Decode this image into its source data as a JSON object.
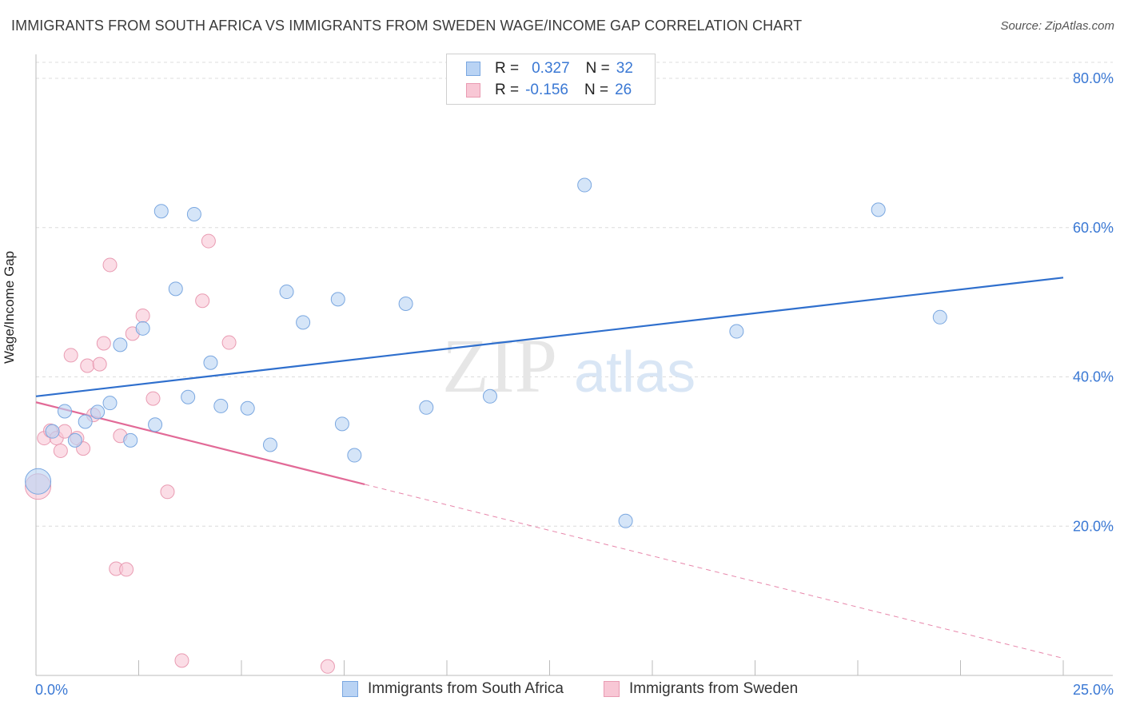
{
  "title": "IMMIGRANTS FROM SOUTH AFRICA VS IMMIGRANTS FROM SWEDEN WAGE/INCOME GAP CORRELATION CHART",
  "source": "Source: ZipAtlas.com",
  "watermark": {
    "zip": "ZIP",
    "atlas": "atlas"
  },
  "legend": {
    "r_label": "R =",
    "n_label": "N =",
    "south_africa": {
      "r": "0.327",
      "n": "32"
    },
    "sweden": {
      "r": "-0.156",
      "n": "26"
    }
  },
  "colors": {
    "blue_fill": "#b9d3f4",
    "blue_stroke": "#7aa7e0",
    "blue_line": "#2f6fcd",
    "pink_fill": "#f8c7d5",
    "pink_stroke": "#e99bb2",
    "pink_line": "#e26a97",
    "axis_text": "#3a78d4"
  },
  "chart_data": {
    "type": "scatter",
    "title": "IMMIGRANTS FROM SOUTH AFRICA VS IMMIGRANTS FROM SWEDEN WAGE/INCOME GAP CORRELATION CHART",
    "xlabel": "",
    "ylabel": "Wage/Income Gap",
    "xlim": [
      0,
      25
    ],
    "ylim": [
      0,
      83
    ],
    "x_tick_labels": [
      "0.0%",
      "25.0%"
    ],
    "y_ticks": [
      20,
      40,
      60,
      80
    ],
    "y_tick_labels": [
      "20.0%",
      "40.0%",
      "60.0%",
      "80.0%"
    ],
    "grid": true,
    "legend_position": "top-center",
    "series": [
      {
        "name": "Immigrants from South Africa",
        "r": 0.327,
        "n": 32,
        "points": [
          {
            "x": 0.05,
            "y": 26.0,
            "big": true
          },
          {
            "x": 0.4,
            "y": 32.7
          },
          {
            "x": 0.7,
            "y": 35.4
          },
          {
            "x": 0.95,
            "y": 31.5
          },
          {
            "x": 1.2,
            "y": 34.0
          },
          {
            "x": 1.5,
            "y": 35.3
          },
          {
            "x": 1.8,
            "y": 36.5
          },
          {
            "x": 2.05,
            "y": 44.3
          },
          {
            "x": 2.3,
            "y": 31.5
          },
          {
            "x": 2.6,
            "y": 46.5
          },
          {
            "x": 2.9,
            "y": 33.6
          },
          {
            "x": 3.05,
            "y": 62.2
          },
          {
            "x": 3.4,
            "y": 51.8
          },
          {
            "x": 3.7,
            "y": 37.3
          },
          {
            "x": 3.85,
            "y": 61.8
          },
          {
            "x": 4.25,
            "y": 41.9
          },
          {
            "x": 4.5,
            "y": 36.1
          },
          {
            "x": 5.15,
            "y": 35.8
          },
          {
            "x": 5.7,
            "y": 30.9
          },
          {
            "x": 6.1,
            "y": 51.4
          },
          {
            "x": 6.5,
            "y": 47.3
          },
          {
            "x": 7.35,
            "y": 50.4
          },
          {
            "x": 7.45,
            "y": 33.7
          },
          {
            "x": 7.75,
            "y": 29.5
          },
          {
            "x": 9.0,
            "y": 49.8
          },
          {
            "x": 9.5,
            "y": 35.9
          },
          {
            "x": 11.05,
            "y": 37.4
          },
          {
            "x": 13.35,
            "y": 65.7
          },
          {
            "x": 14.35,
            "y": 20.7
          },
          {
            "x": 17.05,
            "y": 46.1
          },
          {
            "x": 20.5,
            "y": 62.4
          },
          {
            "x": 22.0,
            "y": 48.0
          }
        ],
        "trend": {
          "x0": 0,
          "y0": 37.4,
          "x1": 25,
          "y1": 53.3
        }
      },
      {
        "name": "Immigrants from Sweden",
        "r": -0.156,
        "n": 26,
        "points": [
          {
            "x": 0.05,
            "y": 25.3,
            "big": true
          },
          {
            "x": 0.2,
            "y": 31.8
          },
          {
            "x": 0.35,
            "y": 32.8
          },
          {
            "x": 0.5,
            "y": 31.8
          },
          {
            "x": 0.6,
            "y": 30.1
          },
          {
            "x": 0.7,
            "y": 32.7
          },
          {
            "x": 0.85,
            "y": 42.9
          },
          {
            "x": 1.0,
            "y": 31.8
          },
          {
            "x": 1.15,
            "y": 30.4
          },
          {
            "x": 1.25,
            "y": 41.5
          },
          {
            "x": 1.4,
            "y": 34.9
          },
          {
            "x": 1.55,
            "y": 41.7
          },
          {
            "x": 1.65,
            "y": 44.5
          },
          {
            "x": 1.8,
            "y": 55.0
          },
          {
            "x": 1.95,
            "y": 14.3
          },
          {
            "x": 2.05,
            "y": 32.1
          },
          {
            "x": 2.2,
            "y": 14.2
          },
          {
            "x": 2.35,
            "y": 45.8
          },
          {
            "x": 2.6,
            "y": 48.2
          },
          {
            "x": 2.85,
            "y": 37.1
          },
          {
            "x": 3.2,
            "y": 24.6
          },
          {
            "x": 3.55,
            "y": 2.0
          },
          {
            "x": 4.05,
            "y": 50.2
          },
          {
            "x": 4.2,
            "y": 58.2
          },
          {
            "x": 4.7,
            "y": 44.6
          },
          {
            "x": 7.1,
            "y": 1.2
          }
        ],
        "trend": {
          "x0": 0,
          "y0": 36.6,
          "x1": 8.0,
          "y1": 25.6,
          "dash_to_x": 25,
          "dash_to_y": 2.3
        }
      }
    ]
  }
}
